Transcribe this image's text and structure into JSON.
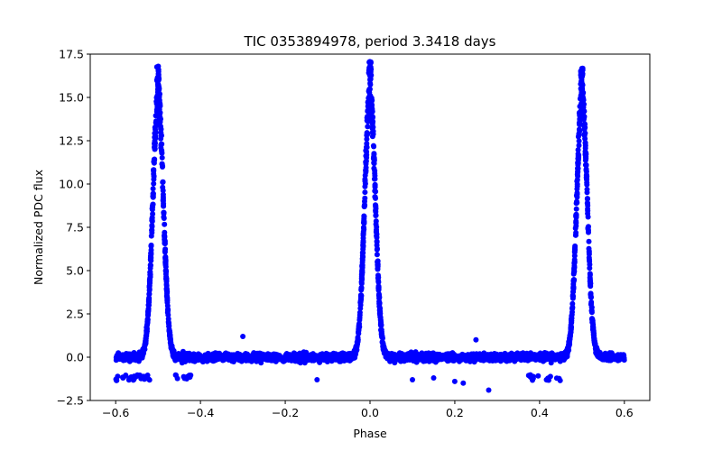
{
  "chart_data": {
    "type": "scatter",
    "title": "TIC 0353894978, period 3.3418 days",
    "xlabel": "Phase",
    "ylabel": "Normalized PDC flux",
    "xlim": [
      -0.66,
      0.66
    ],
    "ylim": [
      -2.5,
      17.5
    ],
    "xticks": [
      -0.6,
      -0.4,
      -0.2,
      0.0,
      0.2,
      0.4,
      0.6
    ],
    "xtick_labels": [
      "−0.6",
      "−0.4",
      "−0.2",
      "0.0",
      "0.2",
      "0.4",
      "0.6"
    ],
    "yticks": [
      -2.5,
      0.0,
      2.5,
      5.0,
      7.5,
      10.0,
      12.5,
      15.0,
      17.5
    ],
    "ytick_labels": [
      "−2.5",
      "0.0",
      "2.5",
      "5.0",
      "7.5",
      "10.0",
      "12.5",
      "15.0",
      "17.5"
    ],
    "grid": false,
    "marker_color": "#0000ff",
    "series": [
      {
        "name": "flux",
        "peaks": [
          {
            "phase": -0.5,
            "max_flux": 16.8
          },
          {
            "phase": 0.0,
            "max_flux": 17.1
          },
          {
            "phase": 0.5,
            "max_flux": 16.8
          }
        ],
        "baseline_flux": 0.0,
        "baseline_scatter": [
          -1.0,
          0.8
        ],
        "phase_range": [
          -0.6,
          0.6
        ],
        "outliers": [
          {
            "x": -0.3,
            "y": 1.2
          },
          {
            "x": -0.125,
            "y": -1.3
          },
          {
            "x": 0.25,
            "y": 1.0
          },
          {
            "x": 0.28,
            "y": -1.9
          },
          {
            "x": 0.22,
            "y": -1.5
          },
          {
            "x": 0.2,
            "y": -1.4
          },
          {
            "x": 0.1,
            "y": -1.3
          },
          {
            "x": 0.15,
            "y": -1.2
          }
        ]
      }
    ]
  }
}
